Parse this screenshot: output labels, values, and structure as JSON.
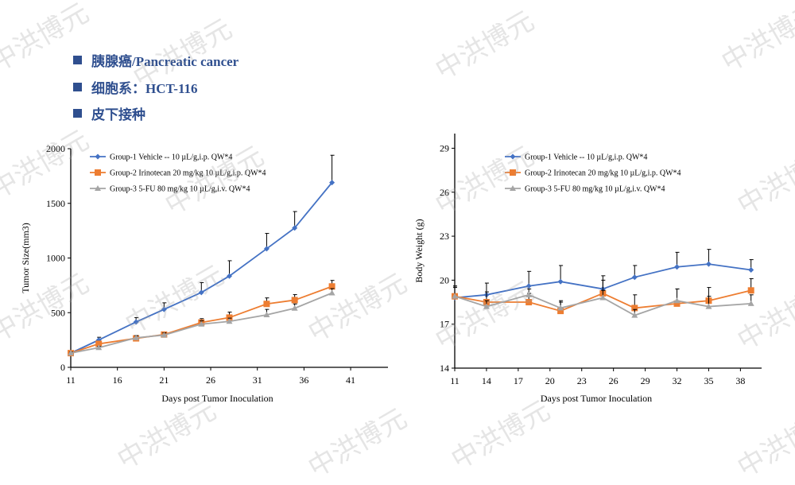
{
  "header": {
    "bullets": [
      "胰腺癌/Pancreatic cancer",
      "细胞系：HCT-116",
      "皮下接种"
    ]
  },
  "watermark": "中洪博元",
  "colors": {
    "g1": "#4472c4",
    "g2": "#ed7d31",
    "g3": "#a5a5a5",
    "bullet": "#2f4f8f"
  },
  "chart_data": [
    {
      "type": "line",
      "title": "",
      "xlabel": "Days post Tumor Inoculation",
      "ylabel": "Tumor Size(mm3)",
      "xlim": [
        11,
        45
      ],
      "ylim": [
        0,
        2000
      ],
      "xticks": [
        11,
        16,
        21,
        26,
        31,
        36,
        41
      ],
      "yticks": [
        0,
        500,
        1000,
        1500,
        2000
      ],
      "legend": "top-left",
      "x": [
        11,
        14,
        18,
        21,
        25,
        28,
        32,
        35,
        39
      ],
      "series": [
        {
          "name": "Group-1 Vehicle -- 10 µL/g,i.p. QW*4",
          "marker": "diamond",
          "values": [
            130,
            250,
            415,
            530,
            685,
            835,
            1085,
            1275,
            1690
          ],
          "err": [
            15,
            25,
            40,
            60,
            90,
            140,
            140,
            150,
            250
          ]
        },
        {
          "name": "Group-2 Irinotecan 20 mg/kg 10 µL/g,i.p. QW*4",
          "marker": "square",
          "values": [
            130,
            215,
            265,
            300,
            410,
            455,
            580,
            615,
            740
          ],
          "err": [
            10,
            15,
            25,
            20,
            35,
            50,
            55,
            50,
            55
          ]
        },
        {
          "name": "Group-3 5-FU 80 mg/kg 10 µL/g,i.v. QW*4",
          "marker": "triangle",
          "values": [
            130,
            180,
            270,
            295,
            395,
            420,
            480,
            540,
            680
          ],
          "err": [
            10,
            12,
            20,
            20,
            30,
            30,
            50,
            40,
            40
          ]
        }
      ]
    },
    {
      "type": "line",
      "title": "",
      "xlabel": "Days post Tumor Inoculation",
      "ylabel": "Body Weight (g)",
      "xlim": [
        11,
        40
      ],
      "ylim": [
        14,
        30
      ],
      "xticks": [
        11,
        14,
        17,
        20,
        23,
        26,
        29,
        32,
        35,
        38
      ],
      "yticks": [
        14,
        17,
        20,
        23,
        26,
        29
      ],
      "legend": "top-center",
      "x": [
        11,
        14,
        18,
        21,
        25,
        28,
        32,
        35,
        39
      ],
      "series": [
        {
          "name": "Group-1 Vehicle -- 10 µL/g,i.p. QW*4",
          "marker": "diamond",
          "values": [
            18.8,
            19.0,
            19.6,
            19.9,
            19.4,
            20.2,
            20.9,
            21.1,
            20.7
          ],
          "err": [
            0.8,
            0.8,
            1.0,
            1.1,
            0.9,
            0.8,
            1.0,
            1.0,
            0.7
          ]
        },
        {
          "name": "Group-2 Irinotecan 20 mg/kg 10 µL/g,i.p. QW*4",
          "marker": "square",
          "values": [
            18.9,
            18.5,
            18.5,
            17.9,
            19.1,
            18.1,
            18.4,
            18.6,
            19.3
          ],
          "err": [
            0.7,
            0.7,
            0.6,
            0.6,
            0.9,
            0.9,
            1.0,
            0.9,
            0.8
          ]
        },
        {
          "name": "Group-3 5-FU 80 mg/kg 10 µL/g,i.v. QW*4",
          "marker": "triangle",
          "values": [
            18.9,
            18.2,
            19.0,
            18.1,
            18.8,
            17.6,
            18.6,
            18.2,
            18.4
          ],
          "err": [
            0.6,
            0.4,
            0.4,
            0.5,
            0.5,
            0.4,
            0.8,
            0.7,
            0.6
          ]
        }
      ]
    }
  ]
}
